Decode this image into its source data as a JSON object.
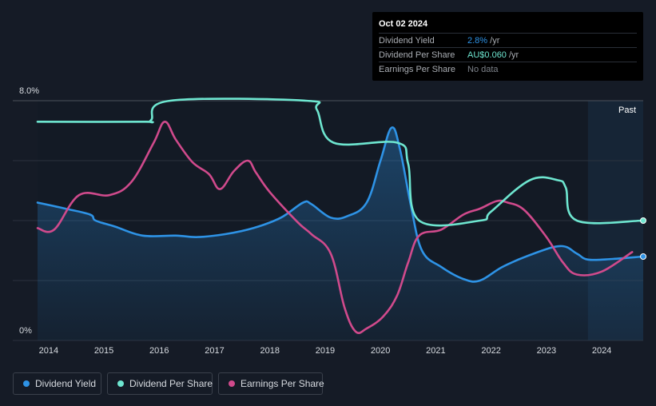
{
  "tooltip": {
    "date": "Oct 02 2024",
    "rows": [
      {
        "label": "Dividend Yield",
        "value": "2.8%",
        "unit": " /yr",
        "color": "#2e93e6"
      },
      {
        "label": "Dividend Per Share",
        "value": "AU$0.060",
        "unit": " /yr",
        "color": "#6ee6d0"
      },
      {
        "label": "Earnings Per Share",
        "value": "No data",
        "unit": "",
        "color": "#7d828a"
      }
    ]
  },
  "past_label": "Past",
  "legend": [
    {
      "label": "Dividend Yield",
      "color": "#2e93e6"
    },
    {
      "label": "Dividend Per Share",
      "color": "#6ee6d0"
    },
    {
      "label": "Earnings Per Share",
      "color": "#d04a8c"
    }
  ],
  "chart_data": {
    "type": "line",
    "title": "",
    "xlabel": "",
    "ylabel": "",
    "ytick_labels": [
      "8.0%",
      "0%"
    ],
    "ylim": [
      0,
      8
    ],
    "xlim": [
      2013.8,
      2024.75
    ],
    "xtick_labels": [
      "2014",
      "2015",
      "2016",
      "2017",
      "2018",
      "2019",
      "2020",
      "2021",
      "2022",
      "2023",
      "2024"
    ],
    "xticks": [
      2014,
      2015,
      2016,
      2017,
      2018,
      2019,
      2020,
      2021,
      2022,
      2023,
      2024
    ],
    "forecast_start": 2023.75,
    "grid": "horizontal",
    "series": [
      {
        "name": "Dividend Yield",
        "color": "#2e93e6",
        "area": true,
        "x": [
          2013.8,
          2014.3,
          2014.75,
          2014.85,
          2015.2,
          2015.7,
          2016.3,
          2016.7,
          2017.2,
          2017.7,
          2018.2,
          2018.6,
          2018.75,
          2019.1,
          2019.4,
          2019.75,
          2020.0,
          2020.2,
          2020.35,
          2020.55,
          2020.75,
          2021.1,
          2021.5,
          2021.8,
          2022.2,
          2022.7,
          2023.25,
          2023.55,
          2023.75,
          2024.2,
          2024.75
        ],
        "y": [
          4.6,
          4.4,
          4.2,
          4.0,
          3.8,
          3.5,
          3.5,
          3.45,
          3.55,
          3.75,
          4.1,
          4.6,
          4.55,
          4.1,
          4.15,
          4.6,
          6.0,
          7.1,
          6.4,
          4.5,
          3.0,
          2.45,
          2.05,
          2.0,
          2.45,
          2.85,
          3.15,
          2.9,
          2.7,
          2.72,
          2.8
        ]
      },
      {
        "name": "Dividend Per Share",
        "color": "#6ee6d0",
        "area": false,
        "x": [
          2013.8,
          2015.7,
          2015.85,
          2016.2,
          2018.65,
          2018.85,
          2019.15,
          2020.3,
          2020.5,
          2020.7,
          2021.8,
          2022.0,
          2022.7,
          2023.2,
          2023.35,
          2023.55,
          2024.75
        ],
        "y": [
          7.3,
          7.3,
          7.35,
          8.0,
          8.0,
          7.7,
          6.6,
          6.6,
          5.9,
          4.0,
          4.0,
          4.3,
          5.35,
          5.35,
          5.1,
          4.0,
          4.0
        ]
      },
      {
        "name": "Earnings Per Share",
        "color": "#d04a8c",
        "area": false,
        "x": [
          2013.8,
          2014.1,
          2014.55,
          2015.1,
          2015.5,
          2015.9,
          2016.1,
          2016.3,
          2016.6,
          2016.9,
          2017.1,
          2017.35,
          2017.6,
          2017.75,
          2018.0,
          2018.5,
          2018.75,
          2019.1,
          2019.35,
          2019.55,
          2019.75,
          2020.05,
          2020.3,
          2020.5,
          2020.7,
          2021.1,
          2021.5,
          2021.8,
          2022.1,
          2022.3,
          2022.6,
          2023.0,
          2023.3,
          2023.55,
          2024.0,
          2024.55
        ],
        "y": [
          3.75,
          3.7,
          4.85,
          4.85,
          5.3,
          6.6,
          7.3,
          6.7,
          5.95,
          5.55,
          5.05,
          5.65,
          6.0,
          5.6,
          4.95,
          3.95,
          3.55,
          2.9,
          1.1,
          0.3,
          0.4,
          0.8,
          1.5,
          2.6,
          3.5,
          3.7,
          4.2,
          4.4,
          4.65,
          4.6,
          4.35,
          3.45,
          2.6,
          2.2,
          2.3,
          2.95
        ]
      }
    ]
  }
}
